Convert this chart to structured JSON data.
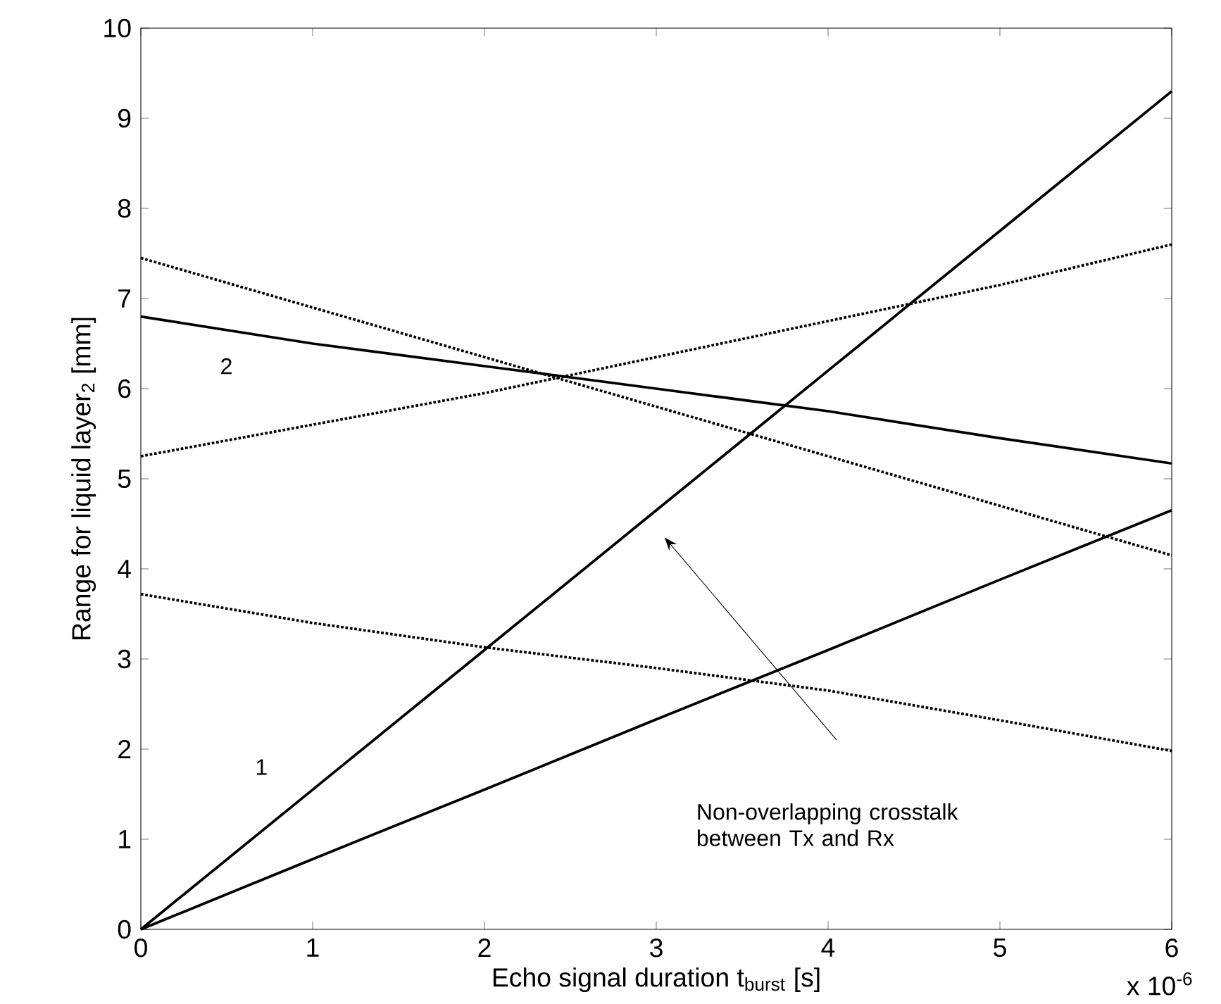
{
  "chart_data": {
    "type": "line",
    "xlabel": "Echo signal duration t$_{burst}$ [s]",
    "ylabel": "Range for liquid layer$_{2}$ [mm]",
    "x": [
      0,
      1,
      2,
      3,
      4,
      5,
      6
    ],
    "series": [
      {
        "color": "#000000",
        "line_style": "solid",
        "values": [
          0,
          1.55,
          3.1,
          4.65,
          6.2,
          7.75,
          9.3
        ]
      },
      {
        "color": "#000000",
        "line_style": "solid",
        "values": [
          0,
          0.78,
          1.55,
          2.33,
          3.1,
          3.88,
          4.65
        ]
      },
      {
        "color": "#000000",
        "line_style": "solid",
        "values": [
          6.8,
          6.5,
          6.25,
          6.0,
          5.75,
          5.45,
          5.17
        ]
      },
      {
        "color": "#000000",
        "line_style": "dotted",
        "values": [
          7.45,
          6.9,
          6.35,
          5.8,
          5.25,
          4.7,
          4.15
        ]
      },
      {
        "color": "#000000",
        "line_style": "dotted",
        "values": [
          5.25,
          5.6,
          5.95,
          6.35,
          6.75,
          7.15,
          7.6
        ]
      },
      {
        "color": "#000000",
        "line_style": "dotted",
        "values": [
          3.72,
          3.4,
          3.13,
          2.9,
          2.65,
          2.32,
          1.98
        ]
      }
    ],
    "xlim": [
      0,
      6
    ],
    "xticks": [
      0,
      1,
      2,
      3,
      4,
      5,
      6
    ],
    "ylim": [
      0,
      10
    ],
    "yticks": [
      0,
      1,
      2,
      3,
      4,
      5,
      6,
      7,
      8,
      9,
      10
    ],
    "grid": false,
    "marker": "none",
    "annotations": [
      "Non-overlapping crosstalk between Tx and Rx",
      "1",
      "2",
      "x 10$^{-6}$"
    ]
  }
}
